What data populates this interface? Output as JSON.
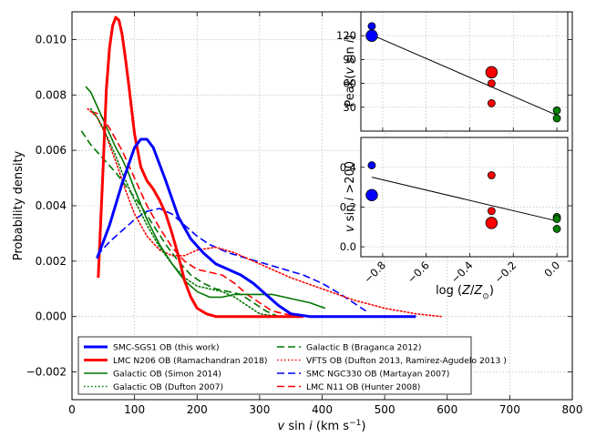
{
  "chart_data": [
    {
      "type": "line",
      "title": "",
      "xlabel": "v sin i (km s⁻¹)",
      "ylabel": "Probability density",
      "xlim": [
        0,
        800
      ],
      "ylim": [
        -0.003,
        0.011
      ],
      "xticks": [
        0,
        100,
        200,
        300,
        400,
        500,
        600,
        700,
        800
      ],
      "xtick_labels": [
        "0",
        "100",
        "200",
        "300",
        "400",
        "500",
        "600",
        "700",
        "800"
      ],
      "yticks": [
        -0.002,
        0.0,
        0.002,
        0.004,
        0.006,
        0.008,
        0.01
      ],
      "ytick_labels": [
        "−0.002",
        "0.000",
        "0.002",
        "0.004",
        "0.006",
        "0.008",
        "0.010"
      ],
      "grid": true,
      "legend_position": "bottom-inside",
      "series": [
        {
          "name": "SMC-SGS1 OB (this work)",
          "color": "#0000ff",
          "style": "solid",
          "width": "thick",
          "x": [
            40,
            60,
            80,
            100,
            110,
            120,
            130,
            150,
            170,
            190,
            210,
            230,
            250,
            270,
            290,
            310,
            330,
            350,
            380,
            420,
            480,
            550
          ],
          "y": [
            0.0021,
            0.0033,
            0.0048,
            0.0061,
            0.0064,
            0.0064,
            0.0061,
            0.0049,
            0.0036,
            0.0028,
            0.0023,
            0.0019,
            0.0017,
            0.0015,
            0.0012,
            0.0008,
            0.0004,
            0.0001,
            0.0,
            0.0,
            0.0,
            0.0
          ]
        },
        {
          "name": "LMC N206 OB (Ramachandran 2018)",
          "color": "#ff0000",
          "style": "solid",
          "width": "thick",
          "x": [
            42,
            50,
            55,
            60,
            65,
            70,
            75,
            80,
            85,
            90,
            100,
            110,
            120,
            130,
            140,
            150,
            160,
            170,
            180,
            190,
            200,
            215,
            230,
            250,
            300,
            370
          ],
          "y": [
            0.0014,
            0.0055,
            0.0082,
            0.0097,
            0.0105,
            0.0108,
            0.0107,
            0.0102,
            0.0094,
            0.0085,
            0.0066,
            0.0054,
            0.0049,
            0.0046,
            0.0042,
            0.0037,
            0.003,
            0.0022,
            0.0013,
            0.0007,
            0.0003,
            0.0001,
            0.0,
            0.0,
            0.0,
            0.0
          ]
        },
        {
          "name": "Galactic OB (Simon 2014)",
          "color": "#007700",
          "style": "solid",
          "width": "normal",
          "x": [
            22,
            30,
            40,
            50,
            60,
            70,
            80,
            90,
            100,
            120,
            140,
            160,
            180,
            200,
            220,
            240,
            260,
            280,
            300,
            320,
            340,
            360,
            380,
            405
          ],
          "y": [
            0.0083,
            0.0081,
            0.0076,
            0.0071,
            0.0066,
            0.0061,
            0.0057,
            0.0052,
            0.0046,
            0.0035,
            0.0026,
            0.0019,
            0.0013,
            0.0009,
            0.0007,
            0.0007,
            0.0008,
            0.0008,
            0.0008,
            0.0008,
            0.0007,
            0.0006,
            0.0005,
            0.0003
          ]
        },
        {
          "name": "Galactic OB (Dufton 2007)",
          "color": "#007700",
          "style": "dotted",
          "width": "normal",
          "x": [
            30,
            40,
            50,
            60,
            70,
            80,
            90,
            100,
            120,
            140,
            160,
            180,
            200,
            220,
            240,
            260,
            280,
            300,
            330
          ],
          "y": [
            0.0075,
            0.0072,
            0.0068,
            0.0063,
            0.0058,
            0.0052,
            0.0047,
            0.0042,
            0.0033,
            0.0025,
            0.0019,
            0.0014,
            0.0011,
            0.001,
            0.0009,
            0.0007,
            0.0004,
            0.0001,
            0.0
          ]
        },
        {
          "name": "Galactic B (Braganca 2012)",
          "color": "#007700",
          "style": "dashed",
          "width": "normal",
          "x": [
            15,
            30,
            50,
            70,
            90,
            110,
            130,
            150,
            170,
            190,
            210,
            230,
            250,
            270,
            290,
            310,
            330
          ],
          "y": [
            0.0067,
            0.0062,
            0.0057,
            0.0052,
            0.0046,
            0.004,
            0.0033,
            0.0026,
            0.002,
            0.0015,
            0.0012,
            0.001,
            0.0009,
            0.0008,
            0.0005,
            0.0002,
            0.0
          ]
        },
        {
          "name": "VFTS OB (Dufton 2013, Ramirez-Agudelo 2013 )",
          "color": "#ff0000",
          "style": "dotted",
          "width": "normal",
          "x": [
            25,
            40,
            55,
            70,
            85,
            100,
            120,
            140,
            160,
            180,
            200,
            230,
            260,
            300,
            350,
            400,
            450,
            500,
            550,
            590
          ],
          "y": [
            0.0075,
            0.0072,
            0.0065,
            0.0056,
            0.0046,
            0.0037,
            0.0029,
            0.0024,
            0.0022,
            0.0022,
            0.0024,
            0.0025,
            0.0023,
            0.0019,
            0.0014,
            0.001,
            0.0006,
            0.0003,
            0.0001,
            0.0
          ]
        },
        {
          "name": "SMC NGC330 OB (Martayan 2007)",
          "color": "#0000ff",
          "style": "dashed",
          "width": "normal",
          "x": [
            40,
            60,
            80,
            100,
            120,
            140,
            160,
            180,
            200,
            220,
            250,
            280,
            310,
            340,
            370,
            400,
            430,
            470
          ],
          "y": [
            0.0022,
            0.0027,
            0.0031,
            0.0035,
            0.0038,
            0.0039,
            0.0037,
            0.0033,
            0.0029,
            0.0026,
            0.0023,
            0.0021,
            0.0019,
            0.0017,
            0.0015,
            0.0012,
            0.0008,
            0.0002
          ]
        },
        {
          "name": "LMC N11 OB (Hunter 2008)",
          "color": "#ff0000",
          "style": "dashed",
          "width": "normal",
          "x": [
            30,
            45,
            60,
            80,
            100,
            120,
            140,
            160,
            180,
            200,
            220,
            240,
            260,
            280,
            300,
            320,
            340,
            360
          ],
          "y": [
            0.0074,
            0.0073,
            0.0068,
            0.006,
            0.005,
            0.004,
            0.0032,
            0.0025,
            0.002,
            0.0017,
            0.0016,
            0.0015,
            0.0012,
            0.0008,
            0.0005,
            0.0002,
            0.0001,
            0.0
          ]
        }
      ]
    },
    {
      "type": "scatter",
      "title": "",
      "xlabel": "",
      "ylabel": "Peak(v sin i)",
      "xlim": [
        -0.9,
        0.05
      ],
      "ylim": [
        0,
        150
      ],
      "yticks": [
        30,
        60,
        90,
        120
      ],
      "ytick_labels": [
        "30",
        "60",
        "90",
        "120"
      ],
      "grid": true,
      "points": [
        {
          "x": -0.85,
          "y": 120,
          "color": "#0000ff",
          "size": "large"
        },
        {
          "x": -0.85,
          "y": 132,
          "color": "#0000ff",
          "size": "small"
        },
        {
          "x": -0.3,
          "y": 74,
          "color": "#ff0000",
          "size": "large"
        },
        {
          "x": -0.3,
          "y": 60,
          "color": "#ff0000",
          "size": "small"
        },
        {
          "x": -0.3,
          "y": 35,
          "color": "#ff0000",
          "size": "small"
        },
        {
          "x": 0.0,
          "y": 26,
          "color": "#008000",
          "size": "small"
        },
        {
          "x": 0.0,
          "y": 16,
          "color": "#008000",
          "size": "small"
        }
      ],
      "fit_line": {
        "x": [
          -0.85,
          0.0
        ],
        "y": [
          121,
          20
        ]
      }
    },
    {
      "type": "scatter",
      "title": "",
      "xlabel": "log (Z/Z⊙)",
      "ylabel": "v sin i >200",
      "xlim": [
        -0.9,
        0.05
      ],
      "ylim": [
        -0.05,
        0.55
      ],
      "xticks": [
        -0.8,
        -0.6,
        -0.4,
        -0.2,
        0.0
      ],
      "xtick_labels": [
        "−0.8",
        "−0.6",
        "−0.4",
        "−0.2",
        "0.0"
      ],
      "yticks": [
        0.0,
        0.2,
        0.4
      ],
      "ytick_labels": [
        "0.0",
        "0.2",
        "0.4"
      ],
      "grid": true,
      "points": [
        {
          "x": -0.85,
          "y": 0.26,
          "color": "#0000ff",
          "size": "large"
        },
        {
          "x": -0.85,
          "y": 0.41,
          "color": "#0000ff",
          "size": "small"
        },
        {
          "x": -0.3,
          "y": 0.12,
          "color": "#ff0000",
          "size": "large"
        },
        {
          "x": -0.3,
          "y": 0.18,
          "color": "#ff0000",
          "size": "small"
        },
        {
          "x": -0.3,
          "y": 0.36,
          "color": "#ff0000",
          "size": "small"
        },
        {
          "x": 0.0,
          "y": 0.15,
          "color": "#008000",
          "size": "small"
        },
        {
          "x": 0.0,
          "y": 0.14,
          "color": "#008000",
          "size": "small"
        },
        {
          "x": 0.0,
          "y": 0.09,
          "color": "#008000",
          "size": "small"
        }
      ],
      "fit_line": {
        "x": [
          -0.85,
          0.0
        ],
        "y": [
          0.35,
          0.13
        ]
      }
    }
  ]
}
